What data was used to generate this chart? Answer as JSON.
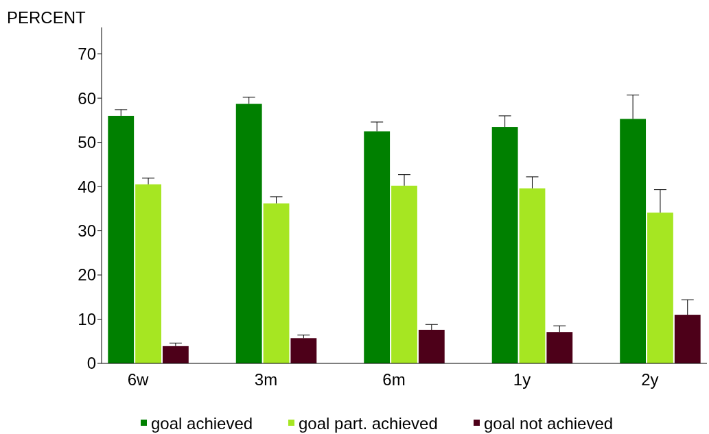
{
  "chart_data": {
    "type": "bar",
    "ylabel": "PERCENT",
    "categories": [
      "6w",
      "3m",
      "6m",
      "1y",
      "2y"
    ],
    "series": [
      {
        "name": "goal achieved",
        "color": "#008000",
        "values": [
          56.0,
          58.7,
          52.5,
          53.5,
          55.3
        ],
        "errors": [
          [
            56.0,
            57.4
          ],
          [
            58.7,
            60.2
          ],
          [
            52.5,
            54.6
          ],
          [
            53.5,
            56.0
          ],
          [
            55.3,
            60.7
          ]
        ]
      },
      {
        "name": "goal part. achieved",
        "color": "#a6e622",
        "values": [
          40.5,
          36.2,
          40.2,
          39.6,
          34.1
        ],
        "errors": [
          [
            40.5,
            41.9
          ],
          [
            36.2,
            37.7
          ],
          [
            40.2,
            42.7
          ],
          [
            39.6,
            42.2
          ],
          [
            34.1,
            39.3
          ]
        ]
      },
      {
        "name": "goal not achieved",
        "color": "#4d0019",
        "values": [
          3.9,
          5.7,
          7.6,
          7.1,
          11.0
        ],
        "errors": [
          [
            3.9,
            4.6
          ],
          [
            5.7,
            6.4
          ],
          [
            7.6,
            8.8
          ],
          [
            7.1,
            8.5
          ],
          [
            11.0,
            14.4
          ]
        ]
      }
    ],
    "ylim": [
      0,
      76
    ],
    "yticks": [
      0,
      10,
      20,
      30,
      40,
      50,
      60,
      70
    ],
    "grid": false,
    "legend": "bottom"
  }
}
